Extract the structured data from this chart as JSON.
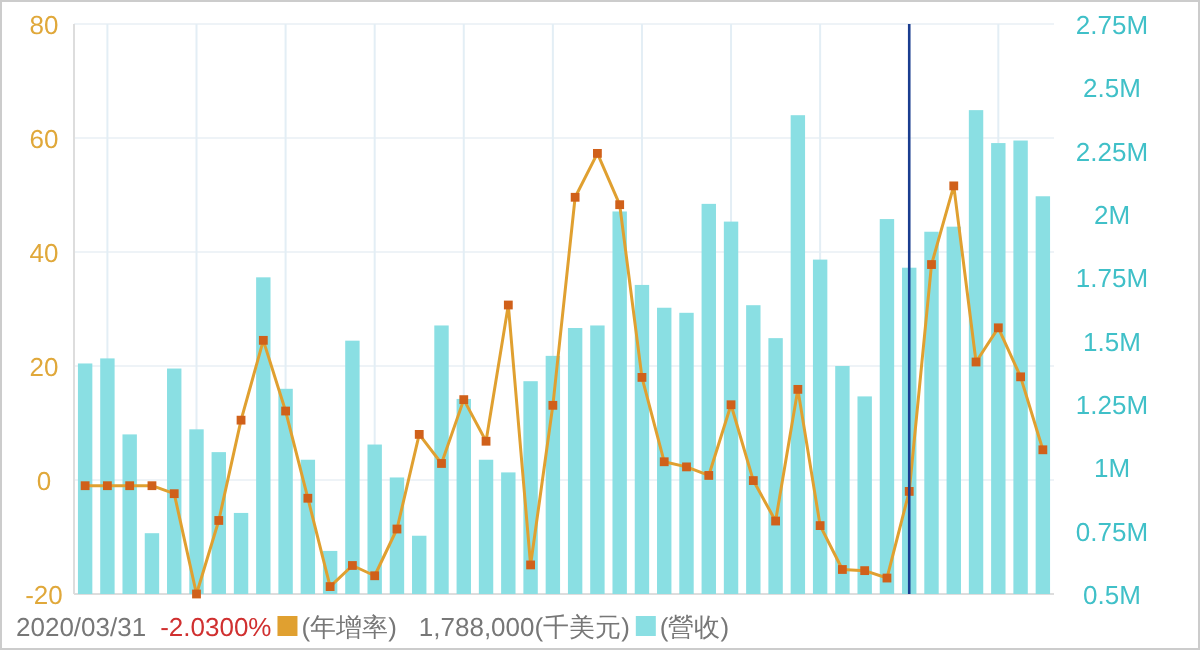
{
  "chart_data": {
    "type": "bar",
    "categories": [
      null,
      null,
      null,
      null,
      null,
      null,
      null,
      null,
      null,
      null,
      null,
      null,
      null,
      null,
      null,
      null,
      null,
      null,
      null,
      null,
      null,
      null,
      null,
      null,
      null,
      null,
      null,
      null,
      null,
      null,
      null,
      null,
      null,
      null,
      null,
      null,
      null,
      null,
      null,
      null,
      null,
      null,
      null,
      null
    ],
    "series": [
      {
        "name": "(年增率)",
        "type": "line",
        "color": "#e0a030",
        "marker": "square",
        "values": [
          -1,
          -1,
          -1,
          -1,
          -2.4,
          -20,
          -7.1,
          10.5,
          24.5,
          12.1,
          -3.2,
          -18.7,
          -15,
          -16.8,
          -8.6,
          8,
          2.9,
          14.1,
          6.8,
          30.7,
          -14.9,
          13.1,
          49.6,
          57.3,
          48.3,
          18,
          3.2,
          2.3,
          0.8,
          13.2,
          -0.1,
          -7.2,
          15.9,
          -8,
          -15.7,
          -15.9,
          -17.2,
          -2,
          37.8,
          51.6,
          20.7,
          26.7,
          18.1,
          5.3
        ]
      },
      {
        "name": "(營收)",
        "axis": "y2",
        "color": "#8adfe3",
        "values": [
          1.41,
          1.43,
          1.13,
          0.74,
          1.39,
          1.15,
          1.06,
          0.82,
          1.75,
          1.31,
          1.03,
          0.67,
          1.5,
          1.09,
          0.96,
          0.73,
          1.56,
          1.27,
          1.03,
          0.98,
          1.34,
          1.44,
          1.55,
          1.56,
          2.01,
          1.72,
          1.63,
          1.61,
          2.04,
          1.97,
          1.64,
          1.51,
          2.39,
          1.82,
          1.4,
          1.28,
          1.98,
          1.788,
          1.93,
          1.95,
          2.41,
          2.28,
          2.29,
          2.07
        ]
      }
    ],
    "ylim": [
      -20,
      80
    ],
    "yticks": [
      -20,
      0,
      20,
      40,
      60,
      80
    ],
    "y2lim": [
      0.5,
      2.75
    ],
    "y2ticks": [
      {
        "value": 0.5,
        "label": "0.5M"
      },
      {
        "value": 0.75,
        "label": "0.75M"
      },
      {
        "value": 1,
        "label": "1M"
      },
      {
        "value": 1.25,
        "label": "1.25M"
      },
      {
        "value": 1.5,
        "label": "1.5M"
      },
      {
        "value": 1.75,
        "label": "1.75M"
      },
      {
        "value": 2,
        "label": "2M"
      },
      {
        "value": 2.25,
        "label": "2.25M"
      },
      {
        "value": 2.5,
        "label": "2.5M"
      },
      {
        "value": 2.75,
        "label": "2.75M"
      }
    ],
    "annotations": [
      "2020/03/31",
      "-2.0300%",
      "1,788,000(千美元)"
    ],
    "grid": true,
    "legend": "bottom left"
  }
}
